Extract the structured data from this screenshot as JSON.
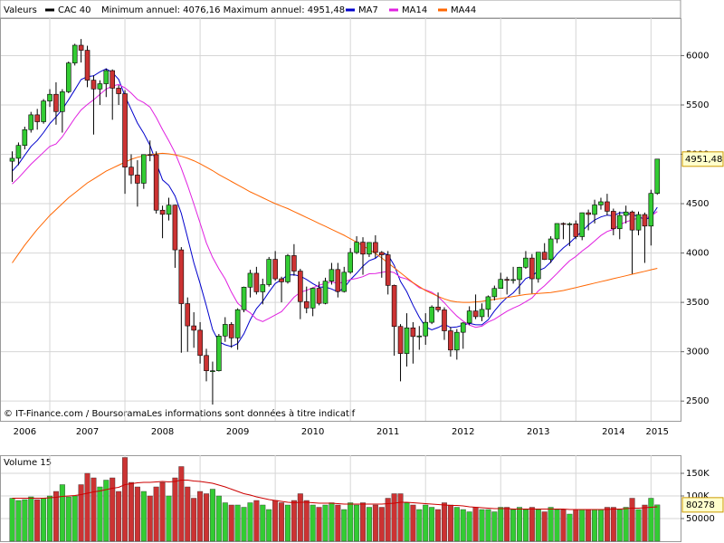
{
  "chart_data": [
    {
      "type": "candlestick",
      "header": "Valeurs",
      "subtitle": "Minimum annuel: 4076,16 Maximum annuel: 4951,48",
      "source": "© IT-Finance.com / BoursoramaLes informations sont données à titre indicatif",
      "name": "CAC 40",
      "color": "#000000",
      "up_color": "#33cc33",
      "down_color": "#cc3333",
      "categories": [
        null,
        null,
        "2006",
        null,
        null,
        null,
        null,
        null,
        null,
        null,
        null,
        null,
        "2007",
        null,
        null,
        null,
        null,
        null,
        null,
        null,
        null,
        null,
        null,
        null,
        "2008",
        null,
        null,
        null,
        null,
        null,
        null,
        null,
        null,
        null,
        null,
        null,
        "2009",
        null,
        null,
        null,
        null,
        null,
        null,
        null,
        null,
        null,
        null,
        null,
        "2010",
        null,
        null,
        null,
        null,
        null,
        null,
        null,
        null,
        null,
        null,
        null,
        "2011",
        null,
        null,
        null,
        null,
        null,
        null,
        null,
        null,
        null,
        null,
        null,
        "2012",
        null,
        null,
        null,
        null,
        null,
        null,
        null,
        null,
        null,
        null,
        null,
        "2013",
        null,
        null,
        null,
        null,
        null,
        null,
        null,
        null,
        null,
        null,
        null,
        "2014",
        null,
        null,
        null,
        null,
        null,
        null,
        "2015"
      ],
      "open": [
        4930,
        4960,
        5090,
        5250,
        5400,
        5330,
        5540,
        5608,
        5433,
        5634,
        5925,
        6105,
        6054,
        5751,
        5662,
        5715,
        5848,
        5670,
        5614,
        4870,
        4790,
        4707,
        4997,
        4996,
        4434,
        4392,
        4485,
        4032,
        3487,
        3262,
        3218,
        2962,
        2807,
        2807,
        3159,
        3277,
        3140,
        3426,
        3654,
        3795,
        3607,
        3680,
        3936,
        3739,
        3708,
        3974,
        3817,
        3508,
        3443,
        3643,
        3490,
        3715,
        3833,
        3610,
        3805,
        4005,
        4110,
        3989,
        4107,
        4006,
        3982,
        3672,
        3256,
        2982,
        3242,
        3154,
        3160,
        3298,
        3453,
        3424,
        3212,
        3017,
        3197,
        3291,
        3413,
        3355,
        3429,
        3557,
        3641,
        3733,
        3723,
        3731,
        3856,
        3949,
        3739,
        4008,
        3934,
        4143,
        4299,
        4295,
        4296,
        4166,
        4408,
        4391,
        4487,
        4519,
        4423,
        4246,
        4381,
        4416,
        4233,
        4390,
        4273,
        4604
      ],
      "high": [
        5030,
        5120,
        5280,
        5430,
        5460,
        5560,
        5660,
        5730,
        5660,
        5940,
        6120,
        6168,
        6100,
        5800,
        5750,
        5870,
        5860,
        5700,
        5650,
        5000,
        4940,
        5000,
        5140,
        5030,
        4480,
        4560,
        4490,
        4060,
        3550,
        3400,
        3300,
        3030,
        2900,
        3180,
        3350,
        3300,
        3440,
        3660,
        3830,
        3860,
        3740,
        3960,
        4020,
        3760,
        3990,
        4090,
        3840,
        3660,
        3650,
        3710,
        3750,
        3900,
        3900,
        3860,
        4050,
        4170,
        4160,
        4110,
        4180,
        4020,
        4020,
        3680,
        3280,
        3390,
        3300,
        3260,
        3390,
        3470,
        3600,
        3450,
        3250,
        3230,
        3300,
        3460,
        3580,
        3490,
        3570,
        3670,
        3800,
        3760,
        3860,
        3860,
        4020,
        3990,
        4010,
        4100,
        4170,
        4300,
        4310,
        4310,
        4330,
        4410,
        4440,
        4540,
        4560,
        4600,
        4450,
        4420,
        4480,
        4430,
        4420,
        4410,
        4641,
        4951.48
      ],
      "low": [
        4720,
        4890,
        5050,
        5220,
        5250,
        5310,
        5480,
        5300,
        5220,
        5620,
        5900,
        5930,
        5680,
        5200,
        5500,
        5580,
        5350,
        5500,
        4600,
        4700,
        4470,
        4650,
        4930,
        4400,
        4150,
        4330,
        3850,
        2990,
        3000,
        3040,
        2880,
        2700,
        2465,
        2800,
        3100,
        3040,
        3020,
        3400,
        3550,
        3580,
        3480,
        3660,
        3720,
        3500,
        3690,
        3770,
        3330,
        3390,
        3360,
        3470,
        3480,
        3680,
        3550,
        3600,
        3790,
        3990,
        3780,
        3960,
        3950,
        3750,
        3580,
        2960,
        2700,
        2850,
        2880,
        3020,
        3070,
        3280,
        3400,
        3120,
        2950,
        2920,
        3030,
        3270,
        3330,
        3310,
        3350,
        3520,
        3640,
        3580,
        3690,
        3580,
        3840,
        3590,
        3700,
        3930,
        3900,
        4100,
        4140,
        4070,
        4140,
        4130,
        4230,
        4300,
        4440,
        4380,
        4180,
        4140,
        4300,
        3789,
        4180,
        3900,
        4076.16,
        4590
      ],
      "close": [
        4960,
        5090,
        5250,
        5400,
        5330,
        5540,
        5608,
        5433,
        5634,
        5925,
        6105,
        6054,
        5751,
        5662,
        5715,
        5848,
        5670,
        5614,
        4870,
        4790,
        4707,
        4997,
        4996,
        4434,
        4392,
        4485,
        4032,
        3487,
        3262,
        3218,
        2962,
        2807,
        2807,
        3159,
        3277,
        3140,
        3426,
        3654,
        3795,
        3607,
        3680,
        3936,
        3739,
        3708,
        3974,
        3817,
        3508,
        3443,
        3643,
        3490,
        3715,
        3833,
        3610,
        3805,
        4005,
        4110,
        3989,
        4107,
        4006,
        3982,
        3672,
        3256,
        2982,
        3242,
        3154,
        3160,
        3298,
        3453,
        3424,
        3212,
        3017,
        3197,
        3291,
        3413,
        3355,
        3429,
        3557,
        3641,
        3733,
        3723,
        3731,
        3856,
        3949,
        3739,
        4008,
        3934,
        4143,
        4299,
        4295,
        4296,
        4166,
        4408,
        4391,
        4487,
        4519,
        4423,
        4246,
        4381,
        4416,
        4233,
        4390,
        4273,
        4604,
        4951.48
      ],
      "last_label": {
        "value": 4951.48,
        "label": "4951,48"
      },
      "series": [
        {
          "name": "MA7",
          "color": "#0000cc",
          "values": [
            4830,
            4900,
            4990,
            5080,
            5140,
            5220,
            5311,
            5379,
            5456,
            5553,
            5654,
            5757,
            5787,
            5795,
            5835,
            5866,
            5829,
            5759,
            5590,
            5453,
            5316,
            5214,
            5092,
            4915,
            4741,
            4686,
            4578,
            4403,
            4155,
            3901,
            3691,
            3465,
            3225,
            3100,
            3070,
            3053,
            3083,
            3181,
            3323,
            3437,
            3511,
            3605,
            3691,
            3731,
            3777,
            3780,
            3766,
            3732,
            3690,
            3655,
            3656,
            3636,
            3606,
            3648,
            3729,
            3795,
            3867,
            3923,
            3947,
            4001,
            3982,
            3875,
            3713,
            3607,
            3471,
            3350,
            3252,
            3221,
            3245,
            3278,
            3245,
            3252,
            3270,
            3287,
            3273,
            3273,
            3323,
            3412,
            3488,
            3550,
            3596,
            3667,
            3741,
            3767,
            3820,
            3849,
            3909,
            3990,
            4052,
            4102,
            4163,
            4220,
            4285,
            4335,
            4366,
            4384,
            4377,
            4408,
            4409,
            4386,
            4373,
            4337,
            4363,
            4464
          ]
        },
        {
          "name": "MA14",
          "color": "#e020e0",
          "values": [
            4700,
            4760,
            4830,
            4900,
            4960,
            5020,
            5080,
            5105,
            5178,
            5272,
            5367,
            5449,
            5504,
            5553,
            5607,
            5661,
            5691,
            5707,
            5674,
            5620,
            5556,
            5525,
            5479,
            5372,
            5250,
            5138,
            5016,
            4860,
            4685,
            4497,
            4303,
            4103,
            3956,
            3839,
            3737,
            3604,
            3492,
            3436,
            3394,
            3331,
            3306,
            3338,
            3372,
            3407,
            3479,
            3552,
            3602,
            3622,
            3648,
            3673,
            3694,
            3707,
            3693,
            3707,
            3731,
            3743,
            3761,
            3790,
            3792,
            3804,
            3815,
            3802,
            3754,
            3737,
            3697,
            3649,
            3627,
            3602,
            3560,
            3496,
            3426,
            3362,
            3310,
            3270,
            3247,
            3259,
            3301,
            3329,
            3370,
            3410,
            3442,
            3470,
            3507,
            3545,
            3616,
            3669,
            3730,
            3793,
            3860,
            3922,
            3965,
            4020,
            4067,
            4122,
            4178,
            4218,
            4240,
            4286,
            4315,
            4336,
            4354,
            4352,
            4374,
            4421
          ]
        },
        {
          "name": "MA44",
          "color": "#ff6600",
          "values": [
            3900,
            3990,
            4080,
            4160,
            4240,
            4310,
            4380,
            4440,
            4500,
            4560,
            4610,
            4660,
            4710,
            4750,
            4790,
            4830,
            4860,
            4890,
            4920,
            4950,
            4970,
            4985,
            4995,
            5005,
            5010,
            5005,
            4995,
            4980,
            4960,
            4935,
            4905,
            4870,
            4835,
            4795,
            4760,
            4725,
            4690,
            4655,
            4620,
            4590,
            4560,
            4530,
            4500,
            4475,
            4450,
            4420,
            4390,
            4360,
            4330,
            4300,
            4270,
            4240,
            4210,
            4180,
            4145,
            4110,
            4075,
            4035,
            3995,
            3950,
            3900,
            3850,
            3800,
            3750,
            3700,
            3660,
            3620,
            3590,
            3560,
            3535,
            3515,
            3505,
            3500,
            3500,
            3505,
            3510,
            3520,
            3530,
            3540,
            3550,
            3560,
            3570,
            3580,
            3585,
            3590,
            3595,
            3600,
            3610,
            3620,
            3635,
            3650,
            3665,
            3680,
            3695,
            3710,
            3725,
            3740,
            3755,
            3770,
            3785,
            3800,
            3815,
            3830,
            3845
          ]
        }
      ],
      "ylim": [
        2300,
        6380
      ],
      "yticks": [
        2500,
        3000,
        3500,
        4000,
        4500,
        5000,
        5500,
        6000
      ],
      "grid": true
    },
    {
      "type": "bar",
      "title": "Volume 15",
      "values": [
        95000,
        90000,
        92000,
        98000,
        92000,
        95000,
        100000,
        110000,
        125000,
        98000,
        100000,
        125000,
        150000,
        140000,
        120000,
        135000,
        140000,
        110000,
        185000,
        130000,
        120000,
        110000,
        100000,
        120000,
        130000,
        100000,
        140000,
        165000,
        120000,
        95000,
        110000,
        105000,
        115000,
        100000,
        85000,
        80000,
        80000,
        75000,
        85000,
        90000,
        80000,
        70000,
        90000,
        85000,
        80000,
        90000,
        105000,
        90000,
        80000,
        75000,
        80000,
        85000,
        80000,
        70000,
        85000,
        80000,
        85000,
        75000,
        80000,
        75000,
        95000,
        105000,
        105000,
        85000,
        80000,
        70000,
        80000,
        75000,
        70000,
        85000,
        80000,
        75000,
        70000,
        65000,
        75000,
        70000,
        70000,
        65000,
        75000,
        75000,
        70000,
        75000,
        70000,
        75000,
        70000,
        65000,
        75000,
        70000,
        70000,
        60000,
        70000,
        70000,
        70000,
        70000,
        70000,
        75000,
        75000,
        70000,
        75000,
        95000,
        70000,
        80000,
        95000,
        80278
      ],
      "series": [
        {
          "color": "#cc0000",
          "values": [
            95000,
            95000,
            95000,
            95000,
            95000,
            95000,
            96000,
            97000,
            99000,
            100000,
            101000,
            103000,
            106000,
            109000,
            111000,
            114000,
            117000,
            119000,
            125000,
            127000,
            129000,
            130000,
            130000,
            131000,
            132000,
            131000,
            132000,
            135000,
            135000,
            133000,
            132000,
            130000,
            128000,
            124000,
            120000,
            115000,
            110000,
            105000,
            102000,
            98000,
            95000,
            92000,
            90000,
            88000,
            86000,
            85000,
            86000,
            86000,
            85000,
            84000,
            84000,
            84000,
            83000,
            82000,
            82000,
            82000,
            82000,
            82000,
            82000,
            82000,
            83000,
            84000,
            86000,
            86000,
            85000,
            84000,
            83000,
            82000,
            81000,
            80000,
            79000,
            79000,
            78000,
            76000,
            75000,
            74000,
            73000,
            72000,
            72000,
            72000,
            71000,
            71000,
            71000,
            71000,
            71000,
            71000,
            71000,
            71000,
            71000,
            70000,
            70000,
            70000,
            70000,
            70000,
            70000,
            70000,
            71000,
            71000,
            72000,
            73000,
            73000,
            74000,
            75000,
            76000
          ]
        }
      ],
      "ylim": [
        0,
        190000
      ],
      "yticks": [
        50000,
        {
          "value": 100000,
          "label": "100K"
        },
        {
          "value": 150000,
          "label": "150K"
        }
      ],
      "grid": true
    }
  ]
}
